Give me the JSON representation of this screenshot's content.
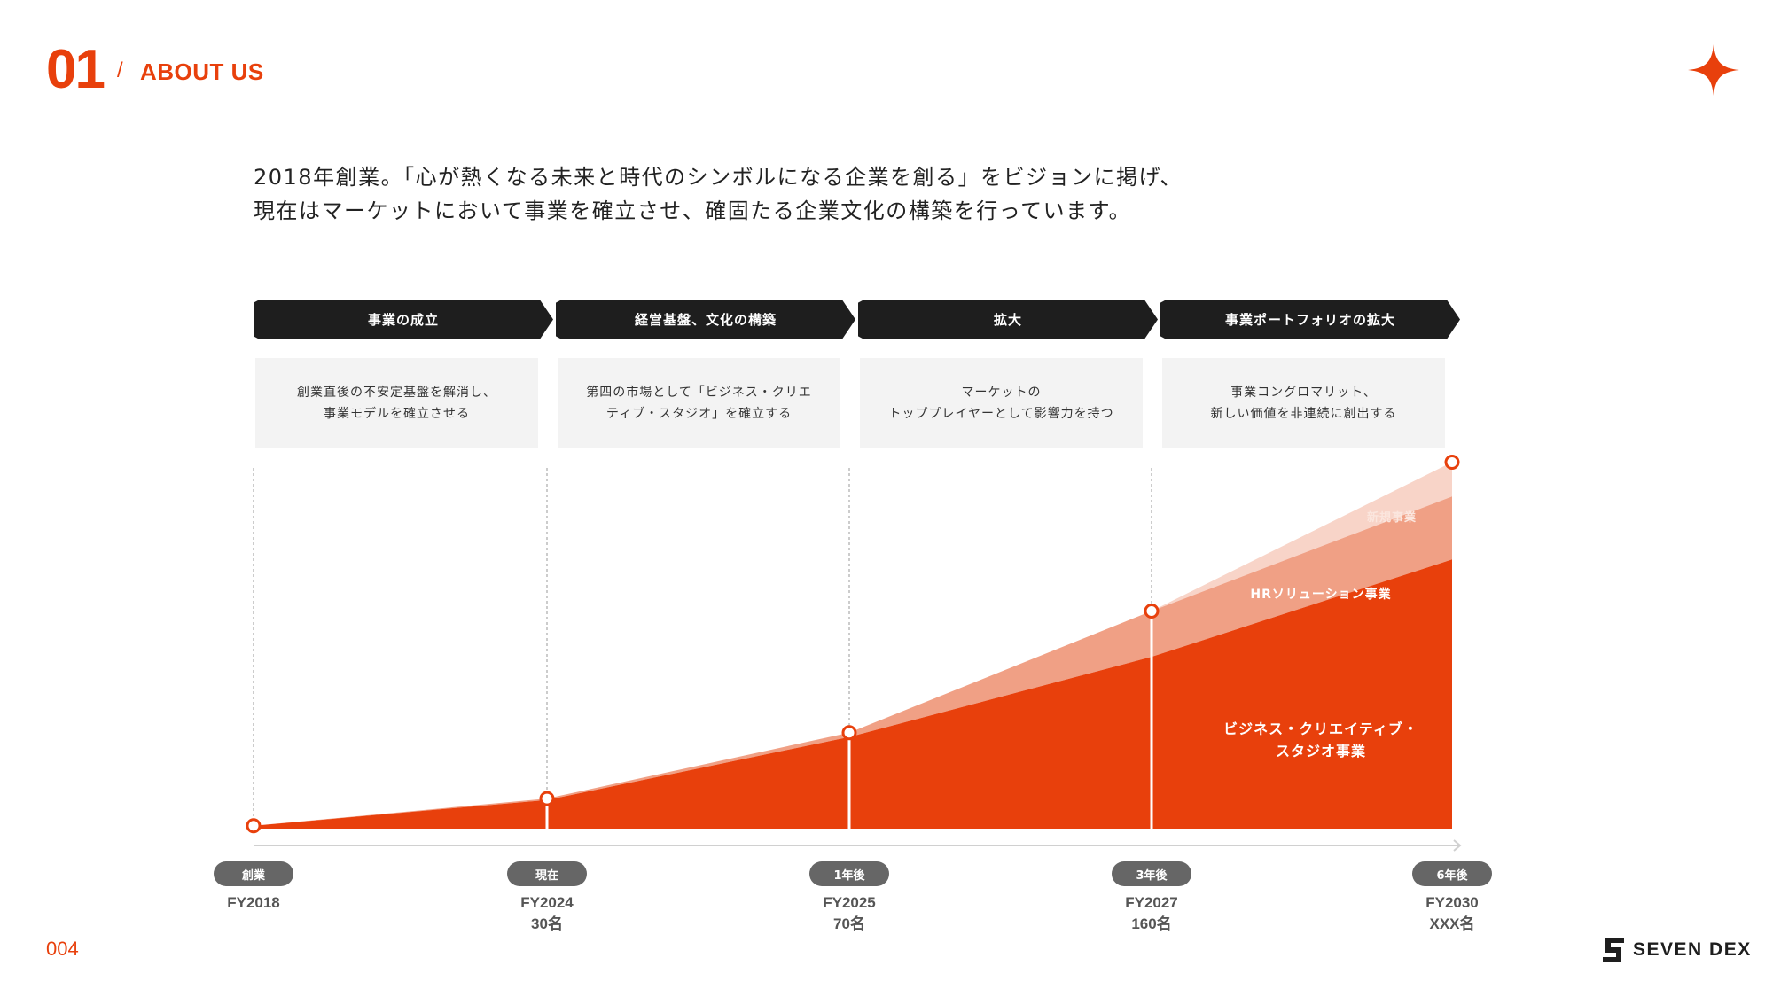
{
  "header": {
    "section_number": "01",
    "slash": "/",
    "section_title": "ABOUT US"
  },
  "intro": {
    "line1": "2018年創業。「心が熱くなる未来と時代のシンボルになる企業を創る」をビジョンに掲げ、",
    "line2": "現在はマーケットにおいて事業を確立させ、確固たる企業文化の構築を行っています。"
  },
  "phases": [
    {
      "title": "事業の成立",
      "desc": "創業直後の不安定基盤を解消し、\n事業モデルを確立させる"
    },
    {
      "title": "経営基盤、文化の構築",
      "desc": "第四の市場として「ビジネス・クリエ\nティブ・スタジオ」を確立する"
    },
    {
      "title": "拡大",
      "desc": "マーケットの\nトッププレイヤーとして影響力を持つ"
    },
    {
      "title": "事業ポートフォリオの拡大",
      "desc": "事業コングロマリット、\n新しい価値を非連続に創出する"
    }
  ],
  "chart_data": {
    "type": "area",
    "stacked": true,
    "x_axis": {
      "categories": [
        "FY2018",
        "FY2024",
        "FY2025",
        "FY2027",
        "FY2030"
      ],
      "stage_labels": [
        "創業",
        "現在",
        "1年後",
        "3年後",
        "6年後"
      ],
      "headcount_labels": [
        "",
        "30名",
        "70名",
        "160名",
        "XXX名"
      ]
    },
    "series": [
      {
        "name": "ビジネス・クリエイティブ・\nスタジオ事業",
        "values": [
          1,
          10,
          32,
          60,
          94
        ],
        "color": "#e8400c"
      },
      {
        "name": "HRソリューション事業",
        "values": [
          0,
          0.5,
          1.5,
          16,
          22
        ],
        "color": "#f0a085"
      },
      {
        "name": "新規事業",
        "values": [
          0,
          0,
          0,
          0,
          12
        ],
        "color": "#f8d4c8"
      }
    ],
    "totals": [
      1,
      10.5,
      33.5,
      76,
      128
    ],
    "y_range": [
      0,
      130
    ],
    "y_axis_labels": false,
    "grid": false
  },
  "footer": {
    "page_number": "004",
    "brand": "SEVEN DEX"
  },
  "colors": {
    "accent": "#e8400c",
    "dark": "#1e1e1e",
    "pill": "#666666",
    "panel": "#f3f3f3"
  }
}
